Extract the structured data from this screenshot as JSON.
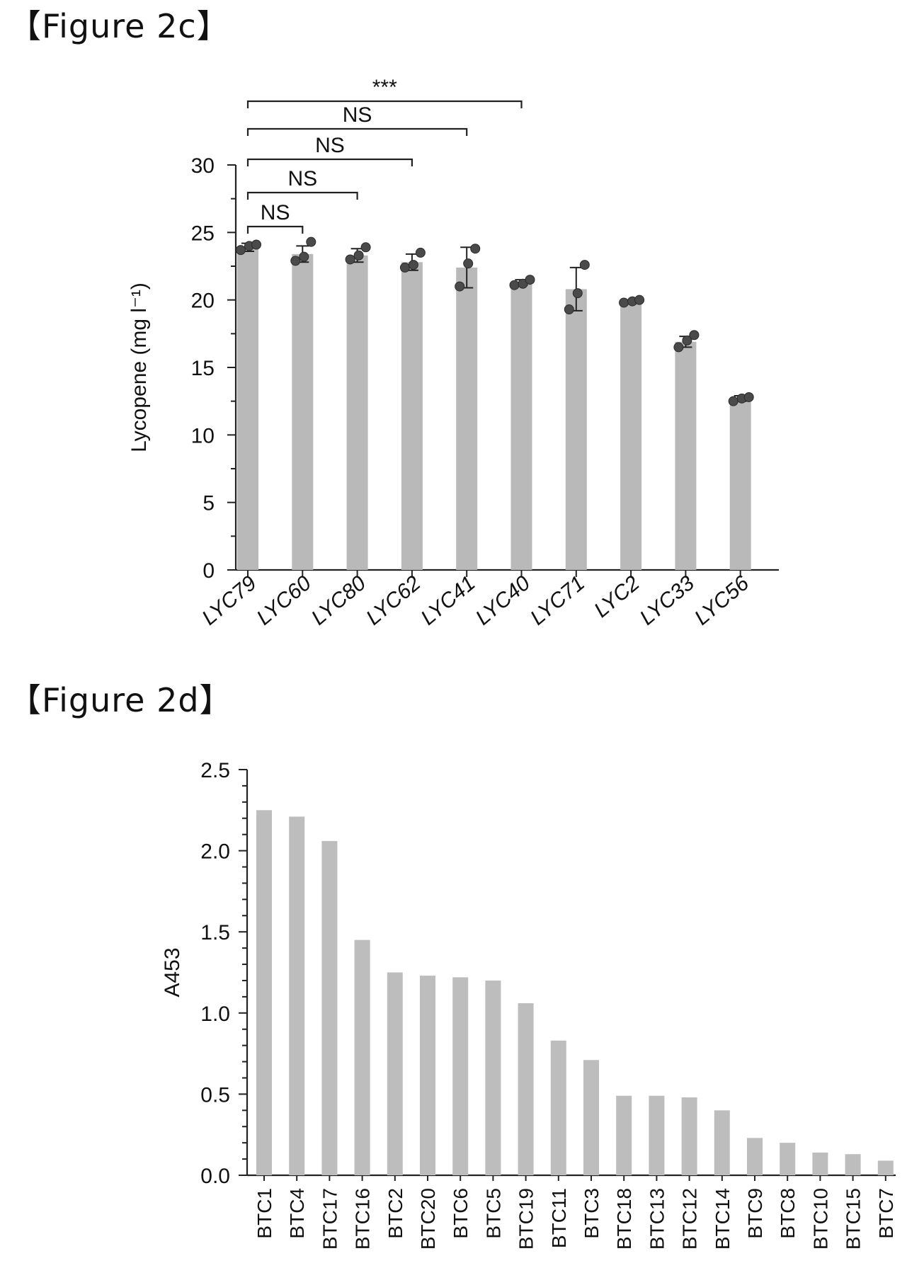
{
  "figure_c": {
    "heading": "【Figure 2c】"
  },
  "figure_d": {
    "heading": "【Figure 2d】"
  },
  "chart_data": [
    {
      "type": "bar",
      "ylabel": "Lycopene (mg l⁻¹)",
      "xlabel": "",
      "ylim": [
        0,
        30
      ],
      "yticks": [
        0,
        5,
        10,
        15,
        20,
        25,
        30
      ],
      "categories": [
        "LYC79",
        "LYC60",
        "LYC80",
        "LYC62",
        "LYC41",
        "LYC40",
        "LYC71",
        "LYC2",
        "LYC33",
        "LYC56"
      ],
      "values": [
        23.9,
        23.4,
        23.3,
        22.8,
        22.4,
        21.3,
        20.8,
        19.9,
        16.9,
        12.7
      ],
      "error": [
        0.3,
        0.6,
        0.5,
        0.6,
        1.5,
        0.2,
        1.6,
        0.1,
        0.4,
        0.2
      ],
      "replicates": [
        [
          23.7,
          24.0,
          24.1
        ],
        [
          22.9,
          23.2,
          24.3
        ],
        [
          23.0,
          23.3,
          23.9
        ],
        [
          22.4,
          22.6,
          23.5
        ],
        [
          21.0,
          22.7,
          23.8
        ],
        [
          21.1,
          21.2,
          21.5
        ],
        [
          19.3,
          20.5,
          22.6
        ],
        [
          19.8,
          19.9,
          20.0
        ],
        [
          16.5,
          17.0,
          17.4
        ],
        [
          12.5,
          12.7,
          12.8
        ]
      ],
      "comparisons": [
        {
          "from": "LYC79",
          "to": "LYC60",
          "label": "NS"
        },
        {
          "from": "LYC79",
          "to": "LYC80",
          "label": "NS"
        },
        {
          "from": "LYC79",
          "to": "LYC62",
          "label": "NS"
        },
        {
          "from": "LYC79",
          "to": "LYC41",
          "label": "NS"
        },
        {
          "from": "LYC79",
          "to": "LYC40",
          "label": "***"
        }
      ],
      "colors": {
        "bar": "#b9b9b9",
        "point": "#4a4a4a"
      }
    },
    {
      "type": "bar",
      "ylabel": "A453",
      "xlabel": "",
      "ylim": [
        0,
        2.5
      ],
      "yticks": [
        "0.0",
        "0.5",
        "1.0",
        "1.5",
        "2.0",
        "2.5"
      ],
      "categories": [
        "BTC1",
        "BTC4",
        "BTC17",
        "BTC16",
        "BTC2",
        "BTC20",
        "BTC6",
        "BTC5",
        "BTC19",
        "BTC11",
        "BTC3",
        "BTC18",
        "BTC13",
        "BTC12",
        "BTC14",
        "BTC9",
        "BTC8",
        "BTC10",
        "BTC15",
        "BTC7"
      ],
      "values": [
        2.25,
        2.21,
        2.06,
        1.45,
        1.25,
        1.23,
        1.22,
        1.2,
        1.06,
        0.83,
        0.71,
        0.49,
        0.49,
        0.48,
        0.4,
        0.23,
        0.2,
        0.14,
        0.13,
        0.09
      ],
      "colors": {
        "bar": "#bdbdbd"
      }
    }
  ]
}
